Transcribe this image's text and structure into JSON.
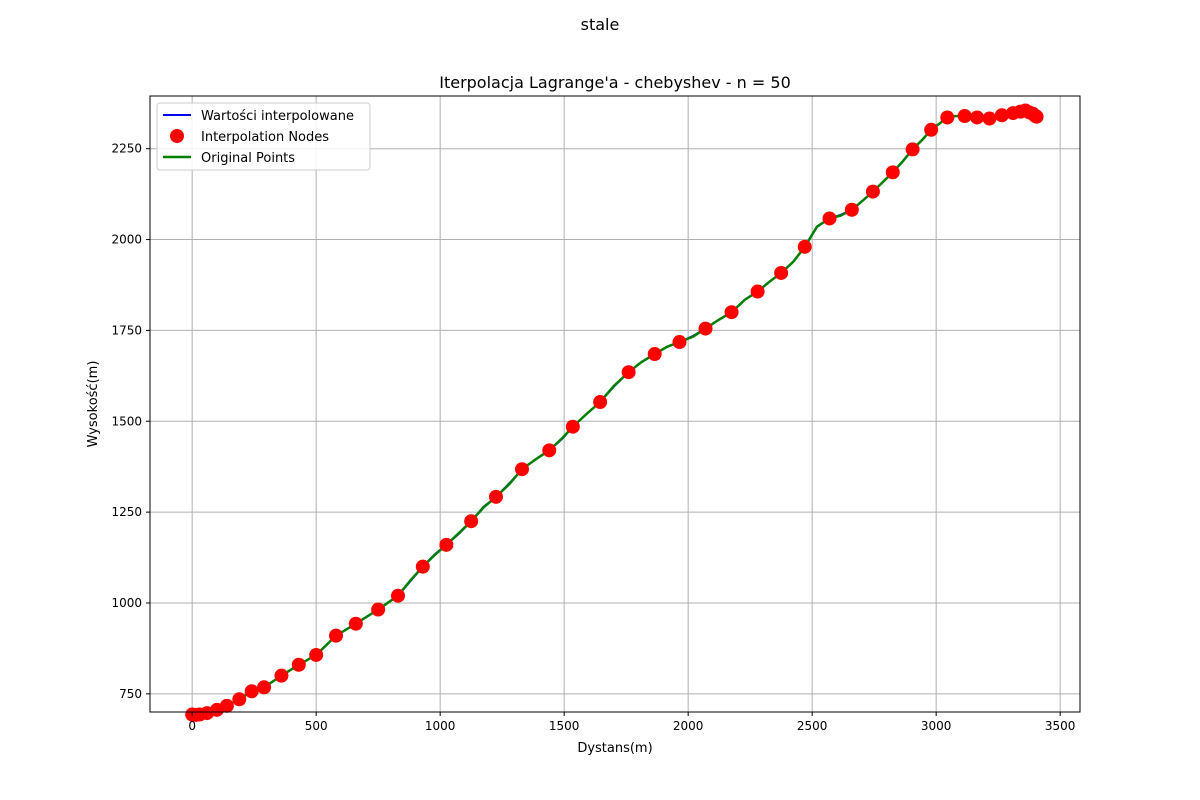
{
  "chart_data": {
    "type": "line",
    "suptitle": "stale",
    "title": "Iterpolacja Lagrange'a - chebyshev - n = 50",
    "xlabel": "Dystans(m)",
    "ylabel": "Wysokość(m)",
    "xlim": [
      -170,
      3580
    ],
    "ylim": [
      700,
      2395
    ],
    "xticks": [
      0,
      500,
      1000,
      1500,
      2000,
      2500,
      3000,
      3500
    ],
    "yticks": [
      750,
      1000,
      1250,
      1500,
      1750,
      2000,
      2250
    ],
    "grid": true,
    "legend_position": "top-left",
    "series": [
      {
        "name": "Wartości interpolowane",
        "kind": "line",
        "color": "#0000ff",
        "x": [
          0,
          30,
          60,
          100,
          140,
          190,
          240,
          290,
          360,
          430,
          500,
          580,
          660,
          750,
          830,
          880,
          930,
          980,
          1025,
          1075,
          1125,
          1175,
          1225,
          1280,
          1330,
          1385,
          1440,
          1490,
          1535,
          1590,
          1645,
          1700,
          1760,
          1810,
          1865,
          1915,
          1965,
          2020,
          2070,
          2125,
          2175,
          2230,
          2280,
          2330,
          2375,
          2425,
          2470,
          2520,
          2570,
          2615,
          2660,
          2700,
          2745,
          2785,
          2825,
          2865,
          2905,
          2945,
          2980,
          3015,
          3045,
          3080,
          3115,
          3140,
          3165,
          3190,
          3215,
          3240,
          3265,
          3285,
          3310,
          3330,
          3350,
          3365,
          3380,
          3392,
          3400,
          3405
        ],
        "y": [
          693,
          692,
          697,
          706,
          717,
          735,
          757,
          768,
          800,
          830,
          857,
          910,
          943,
          982,
          1020,
          1060,
          1100,
          1135,
          1160,
          1190,
          1225,
          1265,
          1292,
          1330,
          1368,
          1395,
          1420,
          1450,
          1485,
          1520,
          1553,
          1595,
          1635,
          1662,
          1685,
          1705,
          1718,
          1735,
          1755,
          1780,
          1800,
          1835,
          1857,
          1885,
          1908,
          1940,
          1980,
          2035,
          2058,
          2068,
          2082,
          2105,
          2132,
          2158,
          2185,
          2215,
          2248,
          2275,
          2302,
          2320,
          2336,
          2340,
          2340,
          2338,
          2336,
          2334,
          2333,
          2338,
          2342,
          2345,
          2348,
          2352,
          2355,
          2355,
          2350,
          2346,
          2340,
          2338
        ]
      },
      {
        "name": "Interpolation Nodes",
        "kind": "scatter",
        "color": "#ff0000",
        "x": [
          0,
          15,
          30,
          60,
          100,
          140,
          190,
          240,
          290,
          360,
          430,
          500,
          580,
          660,
          750,
          830,
          930,
          1025,
          1125,
          1225,
          1330,
          1440,
          1535,
          1645,
          1760,
          1865,
          1965,
          2070,
          2175,
          2280,
          2375,
          2470,
          2570,
          2660,
          2745,
          2825,
          2905,
          2980,
          3045,
          3115,
          3165,
          3215,
          3265,
          3310,
          3340,
          3360,
          3375,
          3390,
          3400,
          3405
        ],
        "y": [
          693,
          692,
          693,
          697,
          706,
          717,
          735,
          757,
          768,
          800,
          830,
          857,
          910,
          943,
          982,
          1020,
          1100,
          1160,
          1225,
          1292,
          1368,
          1420,
          1485,
          1553,
          1635,
          1685,
          1718,
          1755,
          1800,
          1857,
          1908,
          1980,
          2058,
          2082,
          2132,
          2185,
          2248,
          2302,
          2336,
          2340,
          2336,
          2333,
          2342,
          2348,
          2352,
          2355,
          2350,
          2346,
          2340,
          2338
        ]
      },
      {
        "name": "Original Points",
        "kind": "line",
        "color": "#008000",
        "x": [
          0,
          30,
          60,
          100,
          140,
          190,
          240,
          290,
          360,
          430,
          500,
          580,
          660,
          750,
          830,
          880,
          930,
          980,
          1025,
          1075,
          1125,
          1175,
          1225,
          1280,
          1330,
          1385,
          1440,
          1490,
          1535,
          1590,
          1645,
          1700,
          1760,
          1810,
          1865,
          1915,
          1965,
          2020,
          2070,
          2125,
          2175,
          2230,
          2280,
          2330,
          2375,
          2425,
          2470,
          2520,
          2570,
          2615,
          2660,
          2700,
          2745,
          2785,
          2825,
          2865,
          2905,
          2945,
          2980,
          3015,
          3045,
          3080,
          3115,
          3140,
          3165,
          3190,
          3215,
          3240,
          3265,
          3285,
          3310,
          3330,
          3350,
          3365,
          3380,
          3392,
          3400,
          3405
        ],
        "y": [
          693,
          692,
          697,
          706,
          717,
          735,
          757,
          768,
          800,
          830,
          857,
          910,
          943,
          982,
          1020,
          1062,
          1100,
          1133,
          1160,
          1192,
          1225,
          1263,
          1292,
          1328,
          1368,
          1395,
          1420,
          1452,
          1485,
          1520,
          1553,
          1597,
          1635,
          1662,
          1685,
          1705,
          1718,
          1733,
          1755,
          1780,
          1800,
          1835,
          1857,
          1885,
          1908,
          1940,
          1980,
          2036,
          2058,
          2066,
          2082,
          2105,
          2132,
          2158,
          2185,
          2215,
          2248,
          2275,
          2302,
          2320,
          2336,
          2340,
          2340,
          2338,
          2336,
          2334,
          2333,
          2338,
          2342,
          2345,
          2348,
          2352,
          2355,
          2355,
          2350,
          2346,
          2340,
          2338
        ]
      }
    ]
  }
}
